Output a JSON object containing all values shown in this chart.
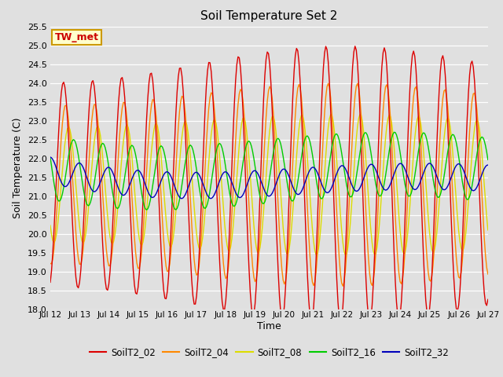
{
  "title": "Soil Temperature Set 2",
  "xlabel": "Time",
  "ylabel": "Soil Temperature (C)",
  "ylim": [
    18.0,
    25.5
  ],
  "yticks": [
    18.0,
    18.5,
    19.0,
    19.5,
    20.0,
    20.5,
    21.0,
    21.5,
    22.0,
    22.5,
    23.0,
    23.5,
    24.0,
    24.5,
    25.0,
    25.5
  ],
  "bg_color": "#e0e0e0",
  "plot_bg_color": "#e0e0e0",
  "series_colors": {
    "SoilT2_02": "#dd0000",
    "SoilT2_04": "#ff8800",
    "SoilT2_08": "#dddd00",
    "SoilT2_16": "#00cc00",
    "SoilT2_32": "#0000bb"
  },
  "annotation_text": "TW_met",
  "annotation_bg": "#ffffcc",
  "annotation_border": "#cc9900",
  "annotation_color": "#cc0000",
  "start_day": 12,
  "end_day": 27
}
